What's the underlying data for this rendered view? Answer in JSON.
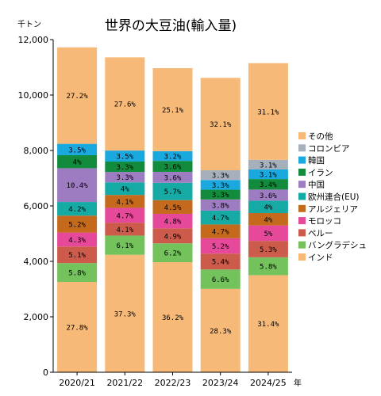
{
  "chart_data": {
    "type": "bar",
    "stacked": true,
    "title": "世界の大豆油(輸入量)",
    "y_unit": "千トン",
    "x_unit": "年",
    "ylim": [
      0,
      12000
    ],
    "y_ticks": [
      0,
      2000,
      4000,
      6000,
      8000,
      10000,
      12000
    ],
    "y_tick_labels": [
      "0",
      "2,000",
      "4,000",
      "6,000",
      "8,000",
      "10,000",
      "12,000"
    ],
    "grid": false,
    "legend_position": "right",
    "categories": [
      "2020/21",
      "2021/22",
      "2022/23",
      "2023/24",
      "2024/25"
    ],
    "totals": [
      11720,
      11360,
      10970,
      10620,
      11150
    ],
    "series": [
      {
        "name": "インド",
        "color": "#f7b977",
        "percent_labels": [
          "27.8%",
          "37.3%",
          "36.2%",
          "28.3%",
          "31.4%"
        ]
      },
      {
        "name": "バングラデシュ",
        "color": "#73c25b",
        "percent_labels": [
          "5.8%",
          "6.1%",
          "6.2%",
          "6.6%",
          "5.8%"
        ]
      },
      {
        "name": "ペルー",
        "color": "#cc5b4c",
        "percent_labels": [
          "5.1%",
          "4.1%",
          "4.9%",
          "5.4%",
          "5.3%"
        ]
      },
      {
        "name": "モロッコ",
        "color": "#e6499a",
        "percent_labels": [
          "4.3%",
          "4.7%",
          "4.8%",
          "5.2%",
          "5%"
        ]
      },
      {
        "name": "アルジェリア",
        "color": "#c56a1c",
        "percent_labels": [
          "5.2%",
          "4.1%",
          "4.5%",
          "4.7%",
          "4%"
        ]
      },
      {
        "name": "欧州連合(EU)",
        "color": "#16aaa5",
        "percent_labels": [
          "4.2%",
          "4%",
          "5.7%",
          "4.7%",
          "4%"
        ]
      },
      {
        "name": "中国",
        "color": "#9e7cc2",
        "percent_labels": [
          "10.4%",
          "3.3%",
          "3.6%",
          "3.8%",
          "3.6%"
        ]
      },
      {
        "name": "イラン",
        "color": "#128c3c",
        "percent_labels": [
          "4%",
          "3.3%",
          "3.6%",
          "3.3%",
          "3.4%"
        ]
      },
      {
        "name": "韓国",
        "color": "#19a9df",
        "percent_labels": [
          "3.5%",
          "3.5%",
          "3.2%",
          "3.3%",
          "3.1%"
        ]
      },
      {
        "name": "コロンビア",
        "color": "#a6b0bd",
        "percent_labels": [
          "",
          "",
          "",
          "3.3%",
          "3.1%"
        ]
      },
      {
        "name": "その他",
        "color": "#f7b977",
        "percent_labels": [
          "27.2%",
          "27.6%",
          "25.1%",
          "32.1%",
          "31.1%"
        ]
      }
    ]
  }
}
